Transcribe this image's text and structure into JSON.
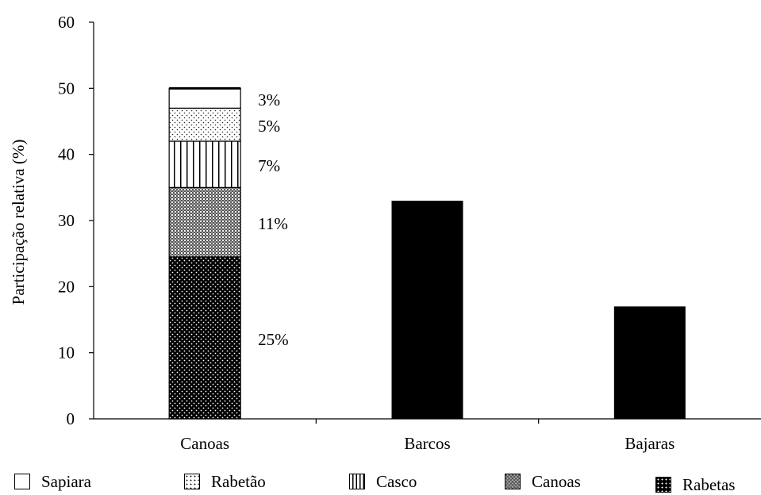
{
  "chart_data": {
    "type": "bar",
    "stacked": true,
    "ylabel": "Participação relativa (%)",
    "ylim": [
      0,
      60
    ],
    "yticks": [
      "0",
      "10",
      "20",
      "30",
      "40",
      "50",
      "60"
    ],
    "grid": false,
    "categories": [
      "Canoas",
      "Barcos",
      "Bajaras"
    ],
    "canoas_stack": [
      {
        "name": "Rabetas",
        "value": 24.5,
        "label": "25%",
        "pattern": "dots-dark"
      },
      {
        "name": "Canoas",
        "value": 10.5,
        "label": "11%",
        "pattern": "crosshatch"
      },
      {
        "name": "Casco",
        "value": 7,
        "label": "7%",
        "pattern": "vertical-lines"
      },
      {
        "name": "Rabetão",
        "value": 5,
        "label": "5%",
        "pattern": "dots-light"
      },
      {
        "name": "Sapiara",
        "value": 3,
        "label": "3%",
        "pattern": "white"
      }
    ],
    "solid_bars": [
      {
        "category": "Barcos",
        "value": 33
      },
      {
        "category": "Bajaras",
        "value": 17
      }
    ],
    "legend": [
      "Sapiara",
      "Rabetão",
      "Casco",
      "Canoas",
      "Rabetas"
    ],
    "legend_position": "bottom"
  }
}
